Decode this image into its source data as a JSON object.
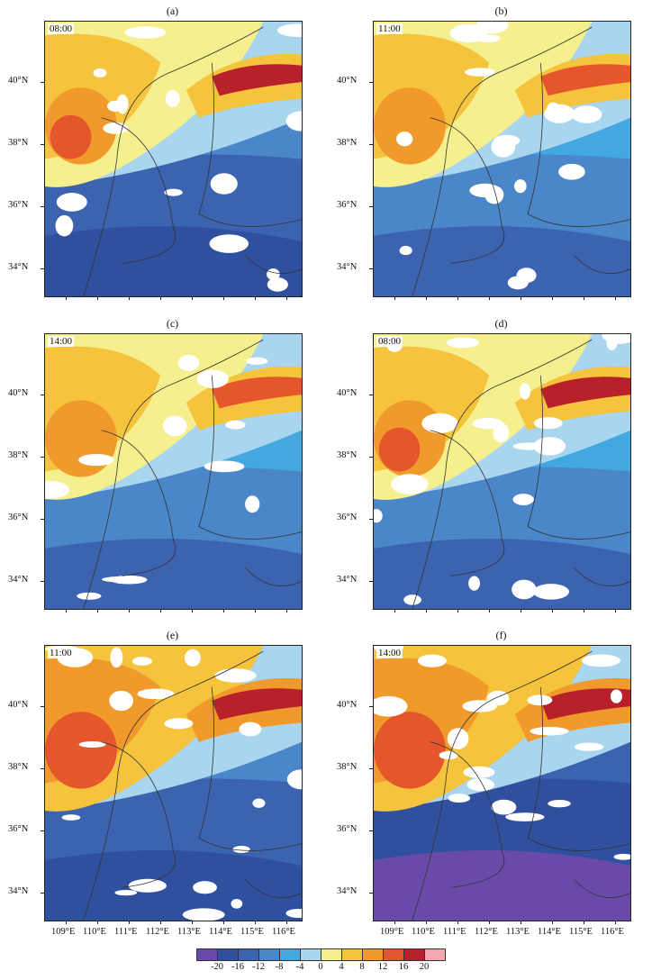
{
  "panels": [
    {
      "id": "a",
      "title": "(a)",
      "time": "08:00"
    },
    {
      "id": "b",
      "title": "(b)",
      "time": "11:00"
    },
    {
      "id": "c",
      "title": "(c)",
      "time": "14:00"
    },
    {
      "id": "d",
      "title": "(d)",
      "time": "08:00"
    },
    {
      "id": "e",
      "title": "(e)",
      "time": "11:00"
    },
    {
      "id": "f",
      "title": "(f)",
      "time": "14:00"
    }
  ],
  "lat_labels": [
    "34°N",
    "36°N",
    "38°N",
    "40°N"
  ],
  "lon_labels": [
    "109°E",
    "110°E",
    "111°E",
    "112°E",
    "113°E",
    "114°E",
    "115°E",
    "116°E"
  ],
  "colorbar": {
    "colors": [
      "#6a4aa8",
      "#2f4f9f",
      "#3c63b0",
      "#4a86c8",
      "#44a8e0",
      "#a9d5ef",
      "#f6ef8e",
      "#f5c33c",
      "#f09a2c",
      "#e5562a",
      "#b8202a",
      "#f5a6ae"
    ],
    "labels": [
      "-20",
      "-16",
      "-12",
      "-8",
      "-4",
      "0",
      "4",
      "8",
      "12",
      "16",
      "20"
    ]
  }
}
